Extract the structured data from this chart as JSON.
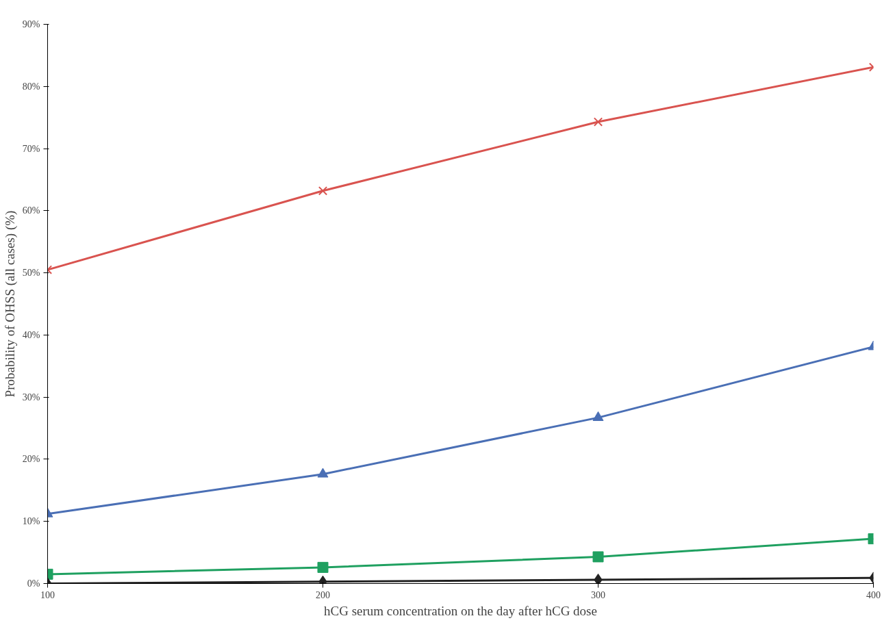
{
  "chart_data": {
    "type": "line",
    "xlabel": "hCG serum concentration on the day after hCG dose",
    "ylabel": "Probability of OHSS (all cases) (%)",
    "x": [
      100,
      200,
      300,
      400
    ],
    "series": [
      {
        "color": "#d9534f",
        "marker": "cross",
        "values": [
          50.5,
          63.2,
          74.3,
          83.1
        ]
      },
      {
        "color": "#4a6fb5",
        "marker": "triangle",
        "values": [
          11.2,
          17.6,
          26.7,
          38.1
        ]
      },
      {
        "color": "#1fa060",
        "marker": "square",
        "values": [
          1.5,
          2.6,
          4.3,
          7.2
        ]
      },
      {
        "color": "#222222",
        "marker": "diamond",
        "values": [
          0,
          0.3,
          0.6,
          0.9
        ]
      }
    ],
    "xlim": [
      100,
      400
    ],
    "xticks": [
      100,
      200,
      300,
      400
    ],
    "ylim": [
      0,
      90
    ],
    "yticks": [
      {
        "value": 0,
        "label": "0%"
      },
      {
        "value": 10,
        "label": "10%"
      },
      {
        "value": 20,
        "label": "20%"
      },
      {
        "value": 30,
        "label": "30%"
      },
      {
        "value": 40,
        "label": "40%"
      },
      {
        "value": 50,
        "label": "50%"
      },
      {
        "value": 60,
        "label": "60%"
      },
      {
        "value": 70,
        "label": "70%"
      },
      {
        "value": 80,
        "label": "80%"
      },
      {
        "value": 90,
        "label": "90%"
      }
    ],
    "grid": false
  }
}
